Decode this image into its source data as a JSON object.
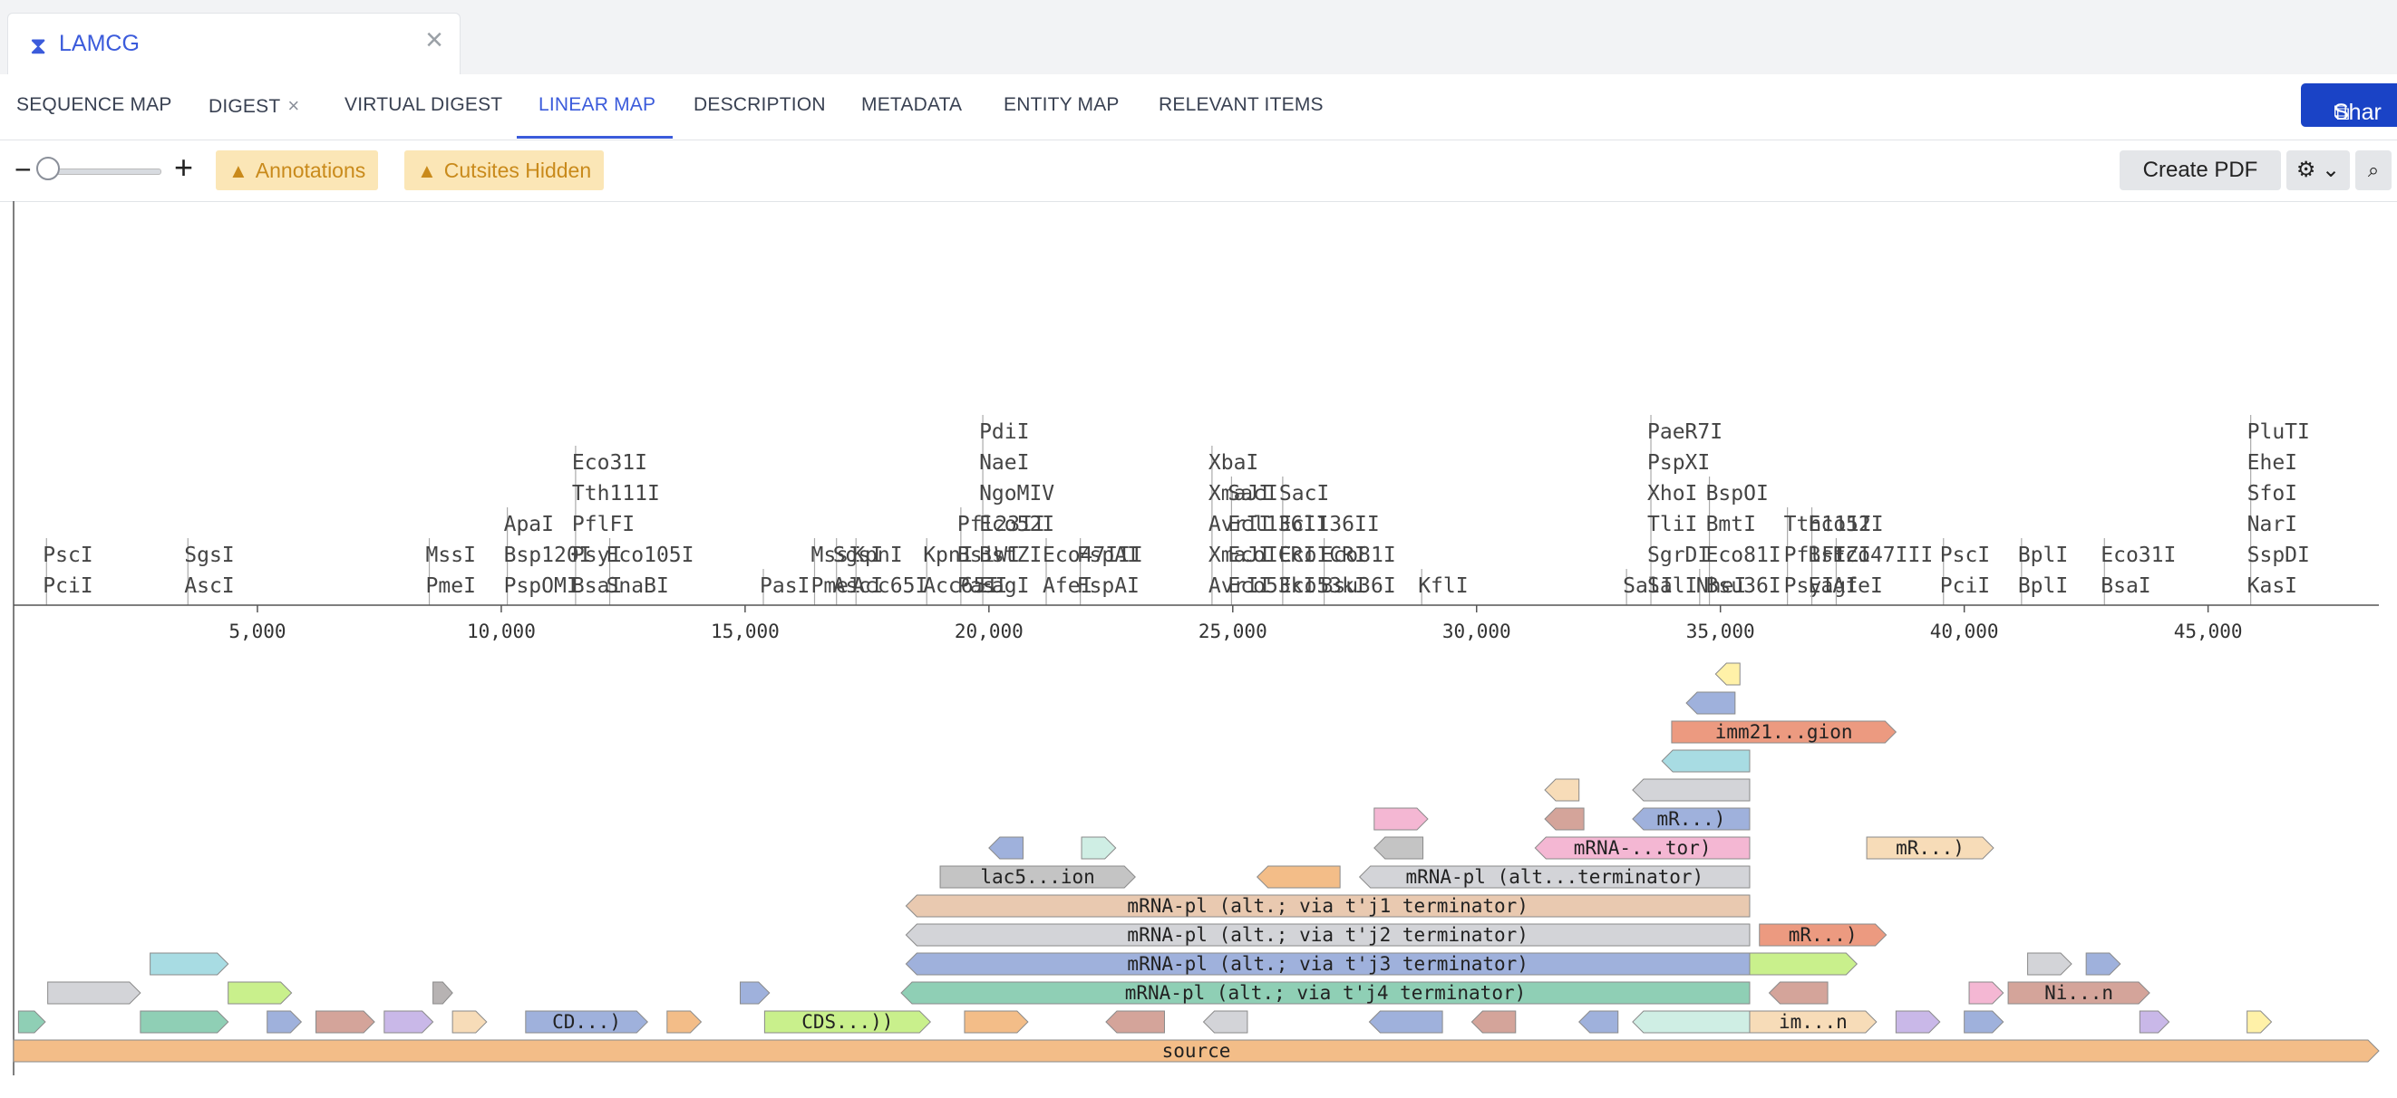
{
  "window": {
    "tab_icon": "hourglass-icon",
    "tab_title": "LAMCG",
    "close_label": "×"
  },
  "nav": {
    "items": [
      {
        "label": "SEQUENCE MAP"
      },
      {
        "label": "DIGEST",
        "close": "×"
      },
      {
        "label": "VIRTUAL DIGEST"
      },
      {
        "label": "LINEAR MAP"
      },
      {
        "label": "DESCRIPTION"
      },
      {
        "label": "METADATA"
      },
      {
        "label": "ENTITY MAP"
      },
      {
        "label": "RELEVANT ITEMS"
      }
    ],
    "active_index": 3,
    "share_label": "Shar",
    "share_icon": "external-link-icon"
  },
  "toolbar": {
    "zoom_minus": "−",
    "zoom_plus": "+",
    "zoom_level": 0.05,
    "annotations_warning": "Annotations",
    "cutsites_warning": "Cutsites Hidden",
    "warning_icon": "warning-icon",
    "pdf_label": "Create PDF",
    "settings_icon": "gear-icon",
    "search_icon": "search-icon"
  },
  "colors": {
    "accent": "#3b5bdb",
    "share": "#1a43c6",
    "warning_bg": "#fbe6b6",
    "warning_text": "#c98a1b"
  },
  "map": {
    "axis_ticks": [
      5000,
      10000,
      15000,
      20000,
      25000,
      30000,
      35000,
      40000,
      45000
    ],
    "axis_labels": [
      "5,000",
      "10,000",
      "15,000",
      "20,000",
      "25,000",
      "30,000",
      "35,000",
      "40,000",
      "45,000"
    ],
    "sequence_length": 48502,
    "cutsite_groups": [
      {
        "pos": 600,
        "labels": [
          "PscI",
          "PciI"
        ]
      },
      {
        "pos": 3500,
        "labels": [
          "SgsI",
          "AscI"
        ]
      },
      {
        "pos": 8450,
        "labels": [
          "MssI",
          "PmeI"
        ]
      },
      {
        "pos": 10050,
        "labels": [
          "ApaI",
          "Bsp120I",
          "PspOMI"
        ]
      },
      {
        "pos": 11450,
        "labels": [
          "Eco31I",
          "Tth111I",
          "PflFI",
          "PsyI",
          "BsaI"
        ]
      },
      {
        "pos": 12150,
        "labels": [
          "Eco105I",
          "SnaBI"
        ]
      },
      {
        "pos": 15300,
        "labels": [
          "PasI"
        ]
      },
      {
        "pos": 16350,
        "labels": [
          "MssI",
          "PmeI"
        ]
      },
      {
        "pos": 16800,
        "labels": [
          "SgsI",
          "AscI"
        ]
      },
      {
        "pos": 17200,
        "labels": [
          "KpnI",
          "Acc65I"
        ]
      },
      {
        "pos": 18650,
        "labels": [
          "KpnI",
          "Acc65I"
        ]
      },
      {
        "pos": 19350,
        "labels": [
          "Pfl23II",
          "BsiWI",
          "PasI"
        ]
      },
      {
        "pos": 19800,
        "labels": [
          "PdiI",
          "NaeI",
          "NgoMIV",
          "Eco52I",
          "BstZI",
          "EagI"
        ]
      },
      {
        "pos": 21100,
        "labels": [
          "Eco47III",
          "AfeI"
        ]
      },
      {
        "pos": 21800,
        "labels": [
          "FspAI",
          "FspAI"
        ]
      },
      {
        "pos": 24500,
        "labels": [
          "XbaI",
          "XmaJI",
          "AvrII",
          "XmaJI",
          "AvrII"
        ]
      },
      {
        "pos": 24900,
        "labels": [
          "SacI",
          "Ecl136II",
          "EcoICRI",
          "Eco53kI"
        ]
      },
      {
        "pos": 25950,
        "labels": [
          "SacI",
          "Ecl136II",
          "EcoICRI",
          "Eco53kI"
        ]
      },
      {
        "pos": 26800,
        "labels": [
          "Eco81I",
          "Bsu36I"
        ]
      },
      {
        "pos": 28800,
        "labels": [
          "KflI"
        ]
      },
      {
        "pos": 33000,
        "labels": [
          "SalI"
        ]
      },
      {
        "pos": 33500,
        "labels": [
          "PaeR7I",
          "PspXI",
          "XhoI",
          "TliI",
          "SgrDI",
          "SalI"
        ]
      },
      {
        "pos": 34500,
        "labels": [
          "NheI"
        ]
      },
      {
        "pos": 34700,
        "labels": [
          "BspOI",
          "BmtI",
          "Eco81I",
          "Bsu36I"
        ]
      },
      {
        "pos": 36300,
        "labels": [
          "Tth111I",
          "PflFI",
          "PsyI"
        ]
      },
      {
        "pos": 36800,
        "labels": [
          "Eco52I",
          "BstZI",
          "EagI"
        ]
      },
      {
        "pos": 37300,
        "labels": [
          "Eco47III",
          "AfeI"
        ]
      },
      {
        "pos": 39500,
        "labels": [
          "PscI",
          "PciI"
        ]
      },
      {
        "pos": 41100,
        "labels": [
          "BplI",
          "BplI"
        ]
      },
      {
        "pos": 42800,
        "labels": [
          "Eco31I",
          "BsaI"
        ]
      },
      {
        "pos": 45800,
        "labels": [
          "PluTI",
          "EheI",
          "SfoI",
          "NarI",
          "SspDI",
          "KasI"
        ]
      }
    ],
    "features": [
      {
        "start": 0,
        "end": 48502,
        "row": 0,
        "dir": 1,
        "color": "#f3bd88",
        "label": "source"
      },
      {
        "start": 100,
        "end": 650,
        "row": 1,
        "dir": 1,
        "color": "#8fcfb5",
        "label": ""
      },
      {
        "start": 2600,
        "end": 4400,
        "row": 1,
        "dir": 1,
        "color": "#8fcfb5",
        "label": ""
      },
      {
        "start": 5200,
        "end": 5900,
        "row": 1,
        "dir": 1,
        "color": "#9fb1dc",
        "label": ""
      },
      {
        "start": 6200,
        "end": 7400,
        "row": 1,
        "dir": 1,
        "color": "#d4a49a",
        "label": ""
      },
      {
        "start": 7600,
        "end": 8600,
        "row": 1,
        "dir": 1,
        "color": "#c9b8e8",
        "label": ""
      },
      {
        "start": 9000,
        "end": 9700,
        "row": 1,
        "dir": 1,
        "color": "#f7dcb8",
        "label": ""
      },
      {
        "start": 10500,
        "end": 13000,
        "row": 1,
        "dir": 1,
        "color": "#9fb1dc",
        "label": "CD...)"
      },
      {
        "start": 13400,
        "end": 14100,
        "row": 1,
        "dir": 1,
        "color": "#f3bd88",
        "label": ""
      },
      {
        "start": 15400,
        "end": 18800,
        "row": 1,
        "dir": 1,
        "color": "#c9f08c",
        "label": "CDS...))"
      },
      {
        "start": 19500,
        "end": 20800,
        "row": 1,
        "dir": 1,
        "color": "#f3bd88",
        "label": ""
      },
      {
        "start": 22400,
        "end": 23600,
        "row": 1,
        "dir": -1,
        "color": "#d4a49a",
        "label": ""
      },
      {
        "start": 24400,
        "end": 25300,
        "row": 1,
        "dir": -1,
        "color": "#d3d4d8",
        "label": ""
      },
      {
        "start": 27800,
        "end": 29300,
        "row": 1,
        "dir": -1,
        "color": "#9fb1dc",
        "label": ""
      },
      {
        "start": 29900,
        "end": 30800,
        "row": 1,
        "dir": -1,
        "color": "#d4a49a",
        "label": ""
      },
      {
        "start": 32100,
        "end": 32900,
        "row": 1,
        "dir": -1,
        "color": "#9fb1dc",
        "label": ""
      },
      {
        "start": 33200,
        "end": 35600,
        "row": 1,
        "dir": -1,
        "color": "#cfeee4",
        "label": ""
      },
      {
        "start": 35600,
        "end": 38200,
        "row": 1,
        "dir": 1,
        "color": "#f7dcb8",
        "label": "im...n"
      },
      {
        "start": 38600,
        "end": 39500,
        "row": 1,
        "dir": 1,
        "color": "#c9b8e8",
        "label": ""
      },
      {
        "start": 40000,
        "end": 40800,
        "row": 1,
        "dir": 1,
        "color": "#9fb1dc",
        "label": ""
      },
      {
        "start": 43600,
        "end": 44200,
        "row": 1,
        "dir": 1,
        "color": "#c9b8e8",
        "label": ""
      },
      {
        "start": 45800,
        "end": 46300,
        "row": 1,
        "dir": 1,
        "color": "#fff1a8",
        "label": ""
      },
      {
        "start": 700,
        "end": 2600,
        "row": 2,
        "dir": 1,
        "color": "#d3d4d8",
        "label": ""
      },
      {
        "start": 4400,
        "end": 5700,
        "row": 2,
        "dir": 1,
        "color": "#c9f08c",
        "label": ""
      },
      {
        "start": 8600,
        "end": 9000,
        "row": 2,
        "dir": 1,
        "color": "#b7b3b3",
        "label": ""
      },
      {
        "start": 14900,
        "end": 15500,
        "row": 2,
        "dir": 1,
        "color": "#9fb1dc",
        "label": ""
      },
      {
        "start": 18200,
        "end": 35600,
        "row": 2,
        "dir": -1,
        "color": "#8fcfb5",
        "label": "mRNA-pl (alt.; via t'j4 terminator)"
      },
      {
        "start": 36000,
        "end": 37200,
        "row": 2,
        "dir": -1,
        "color": "#d4a49a",
        "label": ""
      },
      {
        "start": 40100,
        "end": 40800,
        "row": 2,
        "dir": 1,
        "color": "#f4b7d3",
        "label": ""
      },
      {
        "start": 40900,
        "end": 43800,
        "row": 2,
        "dir": 1,
        "color": "#d4a49a",
        "label": "Ni...n"
      },
      {
        "start": 2800,
        "end": 4400,
        "row": 3,
        "dir": 1,
        "color": "#a8dce3",
        "label": ""
      },
      {
        "start": 18300,
        "end": 35600,
        "row": 3,
        "dir": -1,
        "color": "#9fb1dc",
        "label": "mRNA-pl (alt.; via t'j3 terminator)"
      },
      {
        "start": 35600,
        "end": 37800,
        "row": 3,
        "dir": 1,
        "color": "#c9f08c",
        "label": ""
      },
      {
        "start": 41300,
        "end": 42200,
        "row": 3,
        "dir": 1,
        "color": "#d3d4d8",
        "label": ""
      },
      {
        "start": 42500,
        "end": 43200,
        "row": 3,
        "dir": 1,
        "color": "#9fb1dc",
        "label": ""
      },
      {
        "start": 18300,
        "end": 35600,
        "row": 4,
        "dir": -1,
        "color": "#d3d4d8",
        "label": "mRNA-pl (alt.; via t'j2 terminator)"
      },
      {
        "start": 35800,
        "end": 38400,
        "row": 4,
        "dir": 1,
        "color": "#ec9a80",
        "label": "mR...)"
      },
      {
        "start": 18300,
        "end": 35600,
        "row": 5,
        "dir": -1,
        "color": "#e9c9b0",
        "label": "mRNA-pl (alt.; via t'j1 terminator)"
      },
      {
        "start": 19000,
        "end": 23000,
        "row": 6,
        "dir": 1,
        "color": "#c4c4c4",
        "label": "lac5...ion"
      },
      {
        "start": 25500,
        "end": 27200,
        "row": 6,
        "dir": -1,
        "color": "#f3bd88",
        "label": ""
      },
      {
        "start": 27600,
        "end": 35600,
        "row": 6,
        "dir": -1,
        "color": "#d3d4d8",
        "label": "mRNA-pl (alt...terminator)"
      },
      {
        "start": 20000,
        "end": 20700,
        "row": 7,
        "dir": -1,
        "color": "#9fb1dc",
        "label": ""
      },
      {
        "start": 21900,
        "end": 22600,
        "row": 7,
        "dir": 1,
        "color": "#cfeee4",
        "label": ""
      },
      {
        "start": 27900,
        "end": 28900,
        "row": 7,
        "dir": -1,
        "color": "#c4c4c4",
        "label": ""
      },
      {
        "start": 31200,
        "end": 35600,
        "row": 7,
        "dir": -1,
        "color": "#f4b7d3",
        "label": "mRNA-...tor)"
      },
      {
        "start": 38000,
        "end": 40600,
        "row": 7,
        "dir": 1,
        "color": "#f7dcb8",
        "label": "mR...)"
      },
      {
        "start": 27900,
        "end": 29000,
        "row": 8,
        "dir": 1,
        "color": "#f4b7d3",
        "label": ""
      },
      {
        "start": 31400,
        "end": 32200,
        "row": 8,
        "dir": -1,
        "color": "#d4a49a",
        "label": ""
      },
      {
        "start": 33200,
        "end": 35600,
        "row": 8,
        "dir": -1,
        "color": "#9fb1dc",
        "label": "mR...)"
      },
      {
        "start": 31400,
        "end": 32100,
        "row": 9,
        "dir": -1,
        "color": "#f7dcb8",
        "label": ""
      },
      {
        "start": 33200,
        "end": 35600,
        "row": 9,
        "dir": -1,
        "color": "#d3d4d8",
        "label": ""
      },
      {
        "start": 33800,
        "end": 35600,
        "row": 10,
        "dir": -1,
        "color": "#a8dce3",
        "label": ""
      },
      {
        "start": 34000,
        "end": 38600,
        "row": 11,
        "dir": 1,
        "color": "#ec9a80",
        "label": "imm21...gion"
      },
      {
        "start": 34300,
        "end": 35300,
        "row": 12,
        "dir": -1,
        "color": "#9fb1dc",
        "label": ""
      },
      {
        "start": 34900,
        "end": 35400,
        "row": 13,
        "dir": -1,
        "color": "#fff1a8",
        "label": ""
      }
    ]
  }
}
